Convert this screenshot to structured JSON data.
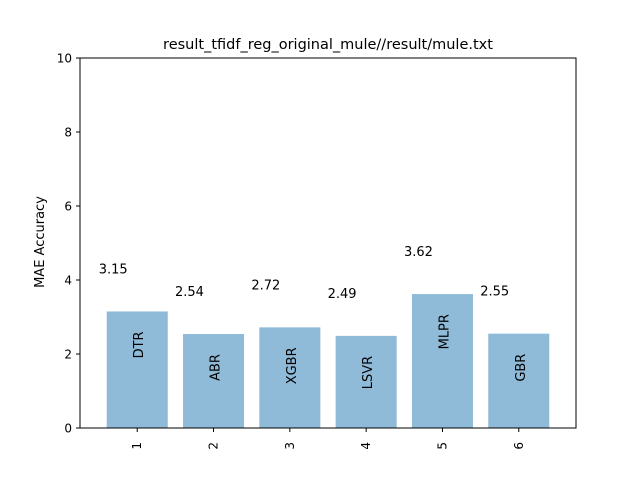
{
  "chart_data": {
    "type": "bar",
    "title": "result_tfidf_reg_original_mule//result/mule.txt",
    "xlabel": "",
    "ylabel": "MAE Accuracy",
    "categories": [
      "1",
      "2",
      "3",
      "4",
      "5",
      "6"
    ],
    "bar_labels": [
      "DTR",
      "ABR",
      "XGBR",
      "LSVR",
      "MLPR",
      "GBR"
    ],
    "values": [
      3.15,
      2.54,
      2.72,
      2.49,
      3.62,
      2.55
    ],
    "value_labels": [
      "3.15",
      "2.54",
      "2.72",
      "2.49",
      "3.62",
      "2.55"
    ],
    "ylim": [
      0,
      10
    ],
    "yticks": [
      0,
      2,
      4,
      6,
      8,
      10
    ],
    "grid": false,
    "legend": "none",
    "colors": {
      "bar": "#8fbbd9"
    }
  }
}
